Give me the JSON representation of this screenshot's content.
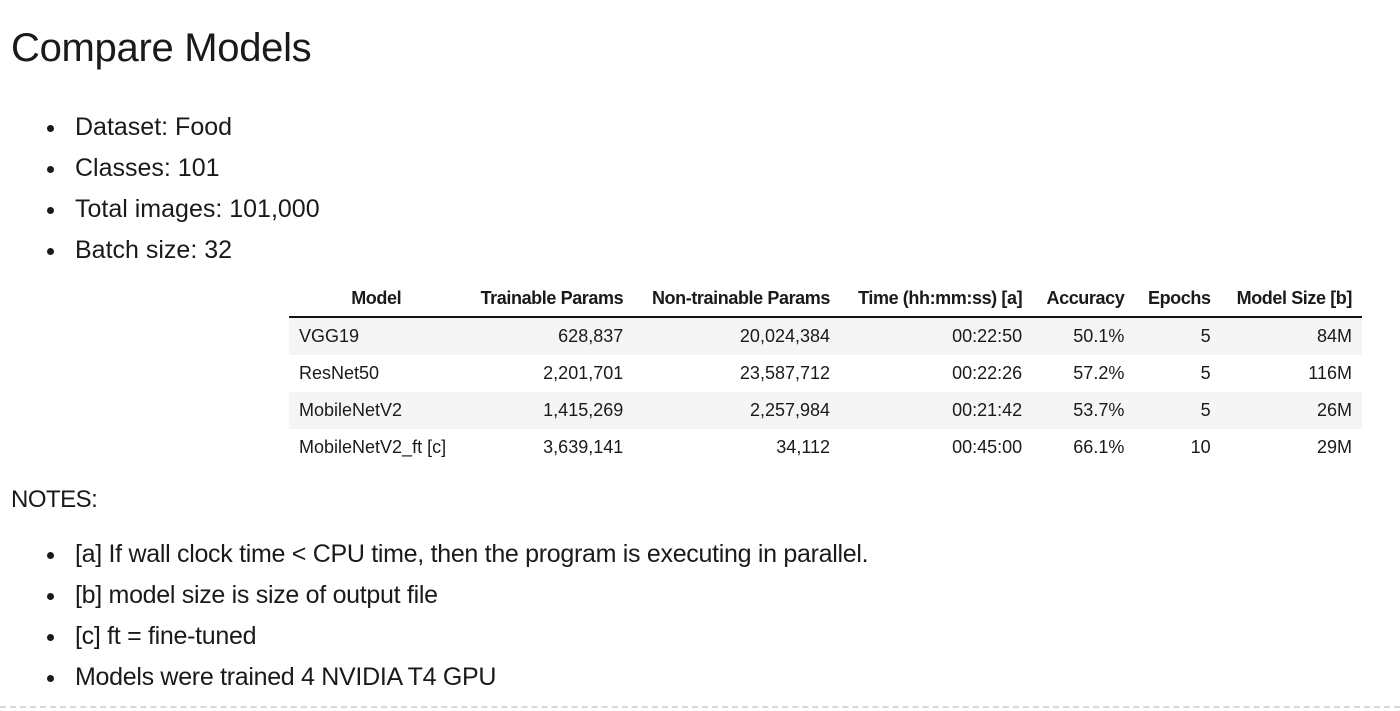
{
  "page": {
    "title": "Compare Models"
  },
  "info": {
    "items": [
      "Dataset: Food",
      "Classes: 101",
      "Total images: 101,000",
      "Batch size: 32"
    ]
  },
  "table": {
    "columns": [
      "Model",
      "Trainable Params",
      "Non-trainable Params",
      "Time (hh:mm:ss) [a]",
      "Accuracy",
      "Epochs",
      "Model Size [b]"
    ],
    "rows": [
      [
        "VGG19",
        "628,837",
        "20,024,384",
        "00:22:50",
        "50.1%",
        "5",
        "84M"
      ],
      [
        "ResNet50",
        "2,201,701",
        "23,587,712",
        "00:22:26",
        "57.2%",
        "5",
        "116M"
      ],
      [
        "MobileNetV2",
        "1,415,269",
        "2,257,984",
        "00:21:42",
        "53.7%",
        "5",
        "26M"
      ],
      [
        "MobileNetV2_ft [c]",
        "3,639,141",
        "34,112",
        "00:45:00",
        "66.1%",
        "10",
        "29M"
      ]
    ]
  },
  "notes": {
    "heading": "NOTES:",
    "items": [
      "[a] If wall clock time < CPU time, then the program is executing in parallel.",
      "[b] model size is size of output file",
      "[c] ft = fine-tuned",
      "Models were trained 4 NVIDIA T4 GPU"
    ]
  },
  "colors": {
    "text": "#1a1a1a",
    "row_stripe": "#f5f5f5",
    "header_rule": "#111111",
    "dashed_rule": "#d8d8d8"
  }
}
